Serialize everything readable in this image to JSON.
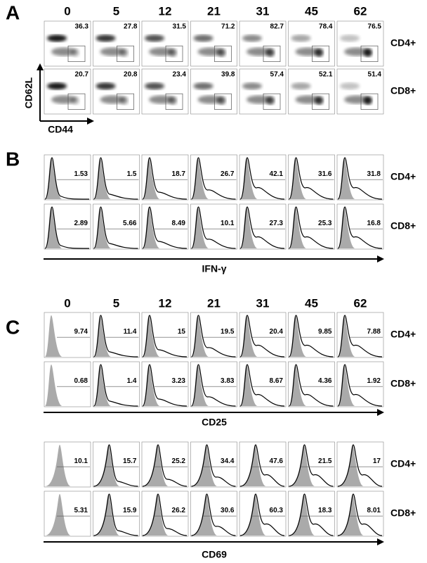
{
  "panels": [
    {
      "letter": "A",
      "timepoints": [
        "0",
        "5",
        "12",
        "21",
        "31",
        "45",
        "62"
      ],
      "y_axis": "CD62L",
      "x_axis": "CD44",
      "rows": [
        {
          "label": "CD4+",
          "values": [
            36.3,
            27.8,
            31.5,
            71.2,
            82.7,
            78.4,
            76.5
          ]
        },
        {
          "label": "CD8+",
          "values": [
            20.7,
            20.8,
            23.4,
            39.8,
            57.4,
            52.1,
            51.4
          ]
        }
      ]
    },
    {
      "letter": "B",
      "x_axis": "IFN-γ",
      "rows": [
        {
          "label": "CD4+",
          "values": [
            1.53,
            1.5,
            18.7,
            26.7,
            42.1,
            31.6,
            31.8
          ]
        },
        {
          "label": "CD8+",
          "values": [
            2.89,
            5.66,
            8.49,
            10.1,
            27.3,
            25.3,
            16.8
          ]
        }
      ]
    },
    {
      "letter": "C",
      "timepoints": [
        "0",
        "5",
        "12",
        "21",
        "31",
        "45",
        "62"
      ],
      "groups": [
        {
          "x_axis": "CD25",
          "rows": [
            {
              "label": "CD4+",
              "values": [
                9.74,
                11.4,
                15,
                19.5,
                20.4,
                9.85,
                7.88
              ]
            },
            {
              "label": "CD8+",
              "values": [
                0.68,
                1.4,
                3.23,
                3.83,
                8.67,
                4.36,
                1.92
              ]
            }
          ]
        },
        {
          "x_axis": "CD69",
          "rows": [
            {
              "label": "CD4+",
              "values": [
                10.1,
                15.7,
                25.2,
                34.4,
                47.6,
                21.5,
                17
              ]
            },
            {
              "label": "CD8+",
              "values": [
                5.31,
                15.9,
                26.2,
                30.6,
                60.3,
                18.3,
                8.01
              ]
            }
          ]
        }
      ]
    }
  ]
}
